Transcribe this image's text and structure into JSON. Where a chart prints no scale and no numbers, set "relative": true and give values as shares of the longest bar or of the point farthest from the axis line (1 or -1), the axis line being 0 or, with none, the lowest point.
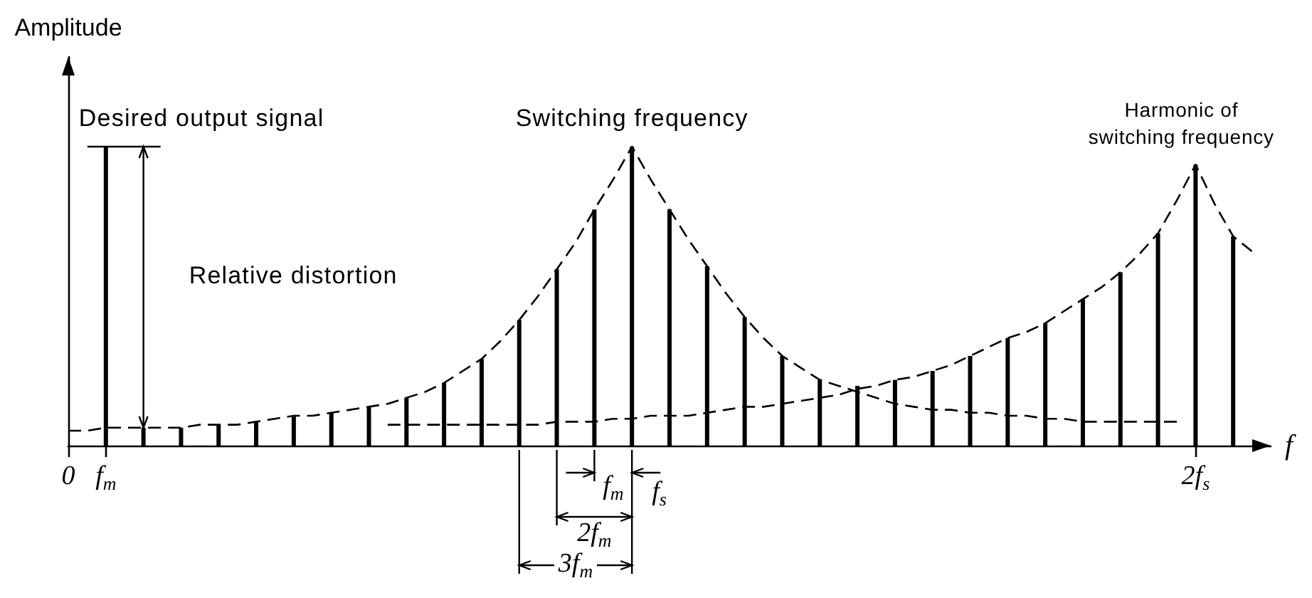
{
  "chart_data": {
    "type": "bar",
    "relative": true,
    "ylabel": "Amplitude",
    "xlabel": "f",
    "categories": [
      "0",
      null,
      "f$_{m}$",
      null,
      null,
      null,
      null,
      null,
      null,
      null,
      null,
      null,
      null,
      null,
      null,
      null,
      null,
      null,
      null,
      null,
      null,
      null,
      null,
      null,
      null,
      null,
      null,
      null,
      null,
      null,
      null,
      null,
      null,
      null,
      null,
      null,
      null,
      null,
      null,
      null,
      null,
      null,
      null,
      null,
      null,
      null,
      null,
      null,
      null,
      null,
      null,
      null,
      null,
      null,
      null,
      null,
      null,
      null,
      null,
      null,
      "2f$_{s}$",
      null,
      null,
      null,
      null
    ],
    "marker": "none",
    "line_style": "dashed",
    "series": [
      {
        "color": "#000000",
        "values": [
          null,
          null,
          1,
          null,
          0.06,
          null,
          0.06,
          null,
          0.07,
          null,
          0.08,
          null,
          0.1,
          null,
          0.11,
          null,
          0.13,
          null,
          0.16,
          null,
          0.21,
          null,
          0.29,
          null,
          0.42,
          null,
          0.59,
          null,
          0.79,
          null,
          1,
          null,
          0.79,
          null,
          0.6,
          null,
          0.43,
          null,
          0.3,
          null,
          0.22,
          null,
          0.2,
          null,
          0.22,
          null,
          0.25,
          null,
          0.3,
          null,
          0.36,
          null,
          0.41,
          null,
          0.49,
          null,
          0.58,
          null,
          0.71,
          null,
          0.94,
          null,
          0.7,
          null,
          null
        ]
      },
      {
        "type": "line",
        "color": "#000000",
        "values": [
          0.05,
          0.05,
          0.06,
          0.06,
          0.06,
          0.06,
          0.06,
          0.07,
          0.07,
          0.07,
          0.08,
          0.09,
          0.1,
          0.1,
          0.11,
          0.12,
          0.13,
          0.14,
          0.16,
          0.18,
          0.21,
          0.25,
          0.29,
          0.35,
          0.42,
          0.5,
          0.59,
          0.68,
          0.79,
          0.89,
          1,
          0.89,
          0.79,
          0.69,
          0.6,
          0.51,
          0.43,
          0.36,
          0.3,
          0.26,
          0.22,
          0.2,
          0.18,
          0.16,
          0.14,
          0.13,
          0.12,
          0.12,
          0.11,
          0.11,
          0.1,
          0.1,
          0.09,
          0.09,
          0.08,
          0.08,
          0.08,
          0.08,
          0.08,
          0.08,
          null,
          null,
          null,
          null,
          null
        ]
      },
      {
        "type": "line",
        "color": "#000000",
        "values": [
          null,
          null,
          null,
          null,
          null,
          null,
          null,
          null,
          null,
          null,
          null,
          null,
          null,
          null,
          null,
          null,
          null,
          0.07,
          0.07,
          0.07,
          0.07,
          0.07,
          0.07,
          0.07,
          0.07,
          0.07,
          0.08,
          0.08,
          0.08,
          0.09,
          0.09,
          0.1,
          0.1,
          0.1,
          0.11,
          0.12,
          0.13,
          0.13,
          0.14,
          0.15,
          0.16,
          0.17,
          0.19,
          0.2,
          0.22,
          0.23,
          0.25,
          0.27,
          0.3,
          0.33,
          0.36,
          0.38,
          0.41,
          0.45,
          0.49,
          0.53,
          0.58,
          0.64,
          0.71,
          0.82,
          0.94,
          0.81,
          0.7,
          0.65,
          null
        ]
      }
    ],
    "annotations": [
      "Desired output signal",
      "Relative distortion",
      "Switching frequency",
      "Harmonic of switching frequency",
      "f$_{m}$",
      "f$_{s}$",
      "2f$_{m}$",
      "3f$_{m}$"
    ]
  }
}
